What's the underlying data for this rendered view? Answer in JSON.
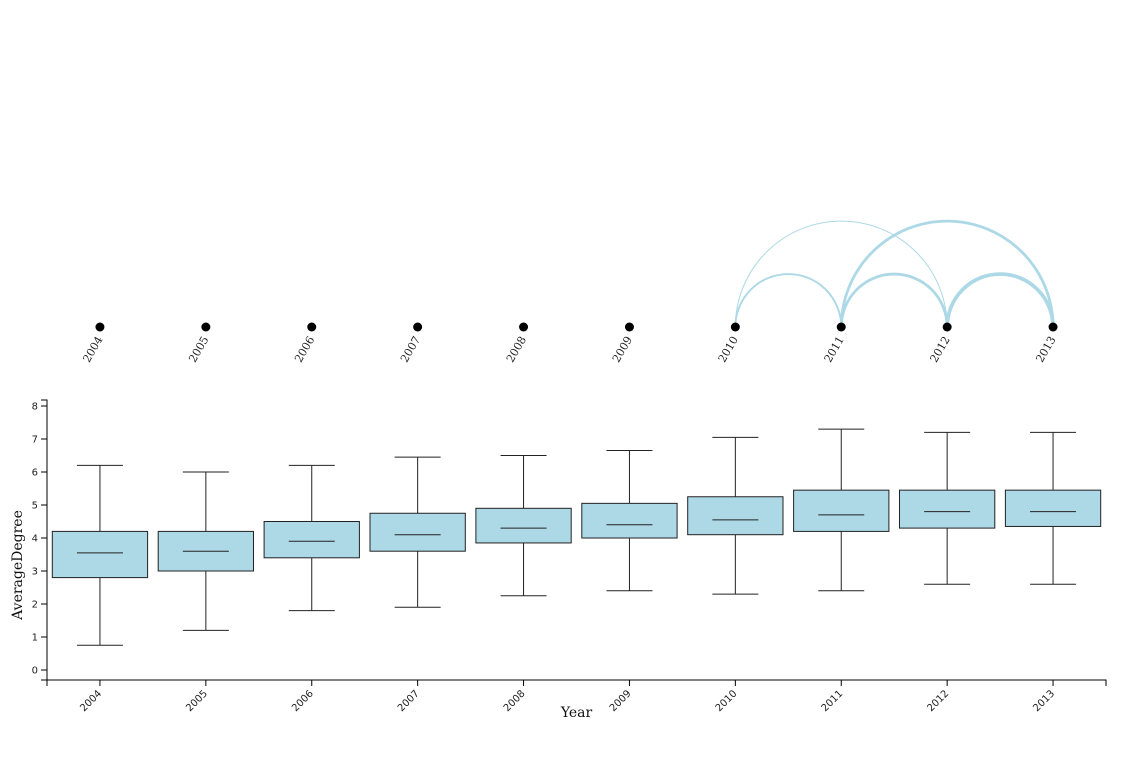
{
  "colors": {
    "box_fill": "#add8e6",
    "arc_stroke": "#add8e6",
    "node_fill": "#000000",
    "line": "#222222"
  },
  "arc_diagram": {
    "nodes": [
      "2004",
      "2005",
      "2006",
      "2007",
      "2008",
      "2009",
      "2010",
      "2011",
      "2012",
      "2013"
    ],
    "links": [
      {
        "source": "2010",
        "target": "2011",
        "weight": 2
      },
      {
        "source": "2010",
        "target": "2012",
        "weight": 1
      },
      {
        "source": "2011",
        "target": "2012",
        "weight": 3
      },
      {
        "source": "2011",
        "target": "2013",
        "weight": 3
      },
      {
        "source": "2012",
        "target": "2013",
        "weight": 4
      }
    ]
  },
  "chart_data": {
    "type": "boxplot",
    "xlabel": "Year",
    "ylabel": "AverageDegree",
    "ylim": [
      0,
      8
    ],
    "yticks": [
      0,
      1,
      2,
      3,
      4,
      5,
      6,
      7,
      8
    ],
    "categories": [
      "2004",
      "2005",
      "2006",
      "2007",
      "2008",
      "2009",
      "2010",
      "2011",
      "2012",
      "2013"
    ],
    "boxes": [
      {
        "min": 0.75,
        "q1": 2.8,
        "median": 3.55,
        "q3": 4.2,
        "max": 6.2
      },
      {
        "min": 1.2,
        "q1": 3.0,
        "median": 3.6,
        "q3": 4.2,
        "max": 6.0
      },
      {
        "min": 1.8,
        "q1": 3.4,
        "median": 3.9,
        "q3": 4.5,
        "max": 6.2
      },
      {
        "min": 1.9,
        "q1": 3.6,
        "median": 4.1,
        "q3": 4.75,
        "max": 6.45
      },
      {
        "min": 2.25,
        "q1": 3.85,
        "median": 4.3,
        "q3": 4.9,
        "max": 6.5
      },
      {
        "min": 2.4,
        "q1": 4.0,
        "median": 4.4,
        "q3": 5.05,
        "max": 6.65
      },
      {
        "min": 2.3,
        "q1": 4.1,
        "median": 4.55,
        "q3": 5.25,
        "max": 7.05
      },
      {
        "min": 2.4,
        "q1": 4.2,
        "median": 4.7,
        "q3": 5.45,
        "max": 7.3
      },
      {
        "min": 2.6,
        "q1": 4.3,
        "median": 4.8,
        "q3": 5.45,
        "max": 7.2
      },
      {
        "min": 2.6,
        "q1": 4.35,
        "median": 4.8,
        "q3": 5.45,
        "max": 7.2
      }
    ]
  }
}
